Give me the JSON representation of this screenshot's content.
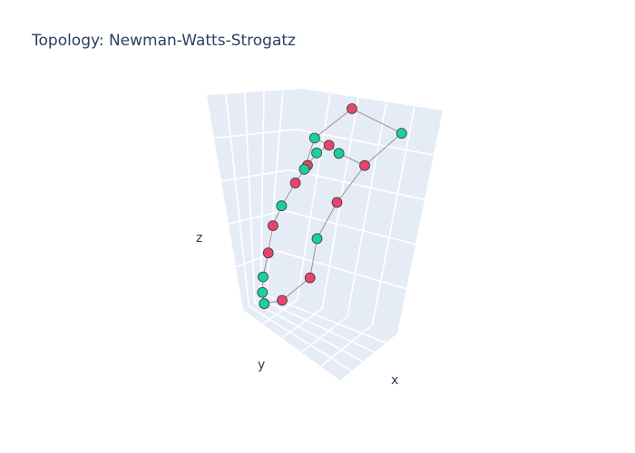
{
  "chart_data": {
    "type": "scatter3d",
    "title": "Topology: Newman-Watts-Strogatz",
    "axis_labels": {
      "x": "x",
      "y": "y",
      "z": "z"
    },
    "grid": true,
    "pane_color": "#e5ecf6",
    "group_colors": {
      "a": "#e6456b",
      "b": "#1ccf9b"
    },
    "nodes": [
      {
        "id": 0,
        "group": "a",
        "x": 0.0,
        "y": 0.3,
        "z": 1.0
      },
      {
        "id": 1,
        "group": "b",
        "x": 0.3,
        "y": 0.62,
        "z": 0.91
      },
      {
        "id": 2,
        "group": "b",
        "x": -0.38,
        "y": 0.15,
        "z": 0.83
      },
      {
        "id": 3,
        "group": "a",
        "x": -0.22,
        "y": 0.2,
        "z": 0.81
      },
      {
        "id": 4,
        "group": "b",
        "x": -0.12,
        "y": 0.24,
        "z": 0.78
      },
      {
        "id": 5,
        "group": "b",
        "x": -0.26,
        "y": 0.1,
        "z": 0.77
      },
      {
        "id": 6,
        "group": "a",
        "x": 0.08,
        "y": 0.38,
        "z": 0.74
      },
      {
        "id": 7,
        "group": "a",
        "x": -0.28,
        "y": 0.02,
        "z": 0.71
      },
      {
        "id": 8,
        "group": "b",
        "x": -0.3,
        "y": 0.0,
        "z": 0.69
      },
      {
        "id": 9,
        "group": "a",
        "x": -0.25,
        "y": -0.12,
        "z": 0.63
      },
      {
        "id": 10,
        "group": "a",
        "x": 0.0,
        "y": 0.15,
        "z": 0.56
      },
      {
        "id": 11,
        "group": "b",
        "x": -0.28,
        "y": -0.24,
        "z": 0.52
      },
      {
        "id": 12,
        "group": "a",
        "x": -0.24,
        "y": -0.35,
        "z": 0.43
      },
      {
        "id": 13,
        "group": "b",
        "x": 0.0,
        "y": -0.05,
        "z": 0.39
      },
      {
        "id": 14,
        "group": "a",
        "x": -0.15,
        "y": -0.45,
        "z": 0.31
      },
      {
        "id": 15,
        "group": "a",
        "x": 0.05,
        "y": -0.15,
        "z": 0.21
      },
      {
        "id": 16,
        "group": "b",
        "x": -0.12,
        "y": -0.52,
        "z": 0.2
      },
      {
        "id": 17,
        "group": "b",
        "x": -0.08,
        "y": -0.55,
        "z": 0.13
      },
      {
        "id": 18,
        "group": "a",
        "x": 0.0,
        "y": -0.4,
        "z": 0.1
      },
      {
        "id": 19,
        "group": "b",
        "x": -0.05,
        "y": -0.55,
        "z": 0.08
      }
    ],
    "edges": [
      [
        0,
        1
      ],
      [
        0,
        2
      ],
      [
        1,
        6
      ],
      [
        2,
        3
      ],
      [
        3,
        4
      ],
      [
        4,
        6
      ],
      [
        3,
        5
      ],
      [
        5,
        7
      ],
      [
        2,
        8
      ],
      [
        7,
        9
      ],
      [
        6,
        10
      ],
      [
        9,
        11
      ],
      [
        10,
        13
      ],
      [
        11,
        12
      ],
      [
        12,
        14
      ],
      [
        14,
        16
      ],
      [
        16,
        17
      ],
      [
        17,
        19
      ],
      [
        13,
        15
      ],
      [
        15,
        18
      ],
      [
        18,
        19
      ]
    ]
  }
}
